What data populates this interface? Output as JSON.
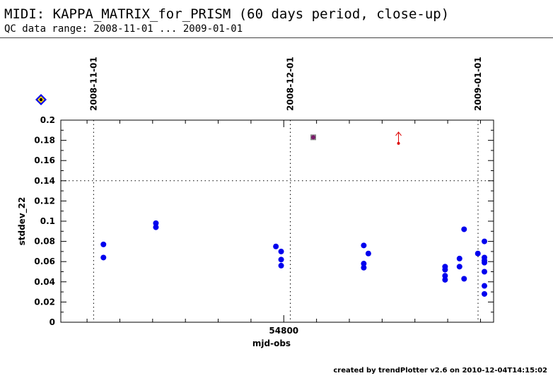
{
  "header": {
    "title": "MIDI: KAPPA_MATRIX_for_PRISM (60 days period, close-up)",
    "subtitle": "QC data range: 2008-11-01 ... 2009-01-01"
  },
  "footer": {
    "text": "created by trendPlotter v2.6 on 2010-12-04T14:15:02"
  },
  "legend_icon": "diamond-icon",
  "colors": {
    "points": "#0000ee",
    "outlier": "#dd0000",
    "threshold": "#000000",
    "marker": "#7a1a6a"
  },
  "chart_data": {
    "type": "scatter",
    "xlabel": "mjd-obs",
    "ylabel": "stddev_22",
    "xlim": [
      54766,
      54832
    ],
    "ylim": [
      0,
      0.2
    ],
    "x_tick_labels": [
      {
        "x": 54800,
        "label": "54800"
      }
    ],
    "y_ticks": [
      0,
      0.02,
      0.04,
      0.06,
      0.08,
      0.1,
      0.12,
      0.14,
      0.16,
      0.18,
      0.2
    ],
    "y_tick_labels": [
      "0",
      "0.02",
      "0.04",
      "0.06",
      "0.08",
      "0.1",
      "0.12",
      "0.14",
      "0.16",
      "0.18",
      "0.2"
    ],
    "date_markers": [
      {
        "x": 54771,
        "label": "2008-11-01"
      },
      {
        "x": 54801,
        "label": "2008-12-01"
      },
      {
        "x": 54832,
        "label": "2009-01-01"
      }
    ],
    "threshold": 0.14,
    "grid": false,
    "points": [
      {
        "x": 54772.5,
        "y": 0.064
      },
      {
        "x": 54772.5,
        "y": 0.077
      },
      {
        "x": 54780.5,
        "y": 0.094
      },
      {
        "x": 54780.5,
        "y": 0.098
      },
      {
        "x": 54798.8,
        "y": 0.075
      },
      {
        "x": 54799.6,
        "y": 0.07
      },
      {
        "x": 54799.6,
        "y": 0.062
      },
      {
        "x": 54799.6,
        "y": 0.056
      },
      {
        "x": 54812.2,
        "y": 0.076
      },
      {
        "x": 54812.2,
        "y": 0.058
      },
      {
        "x": 54812.2,
        "y": 0.054
      },
      {
        "x": 54812.9,
        "y": 0.068
      },
      {
        "x": 54824.6,
        "y": 0.055
      },
      {
        "x": 54824.6,
        "y": 0.052
      },
      {
        "x": 54824.6,
        "y": 0.046
      },
      {
        "x": 54824.6,
        "y": 0.042
      },
      {
        "x": 54826.8,
        "y": 0.063
      },
      {
        "x": 54826.8,
        "y": 0.055
      },
      {
        "x": 54827.5,
        "y": 0.092
      },
      {
        "x": 54827.5,
        "y": 0.043
      },
      {
        "x": 54829.6,
        "y": 0.068
      },
      {
        "x": 54830.6,
        "y": 0.08
      },
      {
        "x": 54830.6,
        "y": 0.064
      },
      {
        "x": 54830.6,
        "y": 0.061
      },
      {
        "x": 54830.6,
        "y": 0.059
      },
      {
        "x": 54830.6,
        "y": 0.05
      },
      {
        "x": 54830.6,
        "y": 0.036
      },
      {
        "x": 54830.6,
        "y": 0.028
      }
    ],
    "special_marker": {
      "x": 54804.5,
      "y": 0.183
    },
    "outliers": [
      {
        "x": 54817.5,
        "y": 0.177
      }
    ]
  }
}
